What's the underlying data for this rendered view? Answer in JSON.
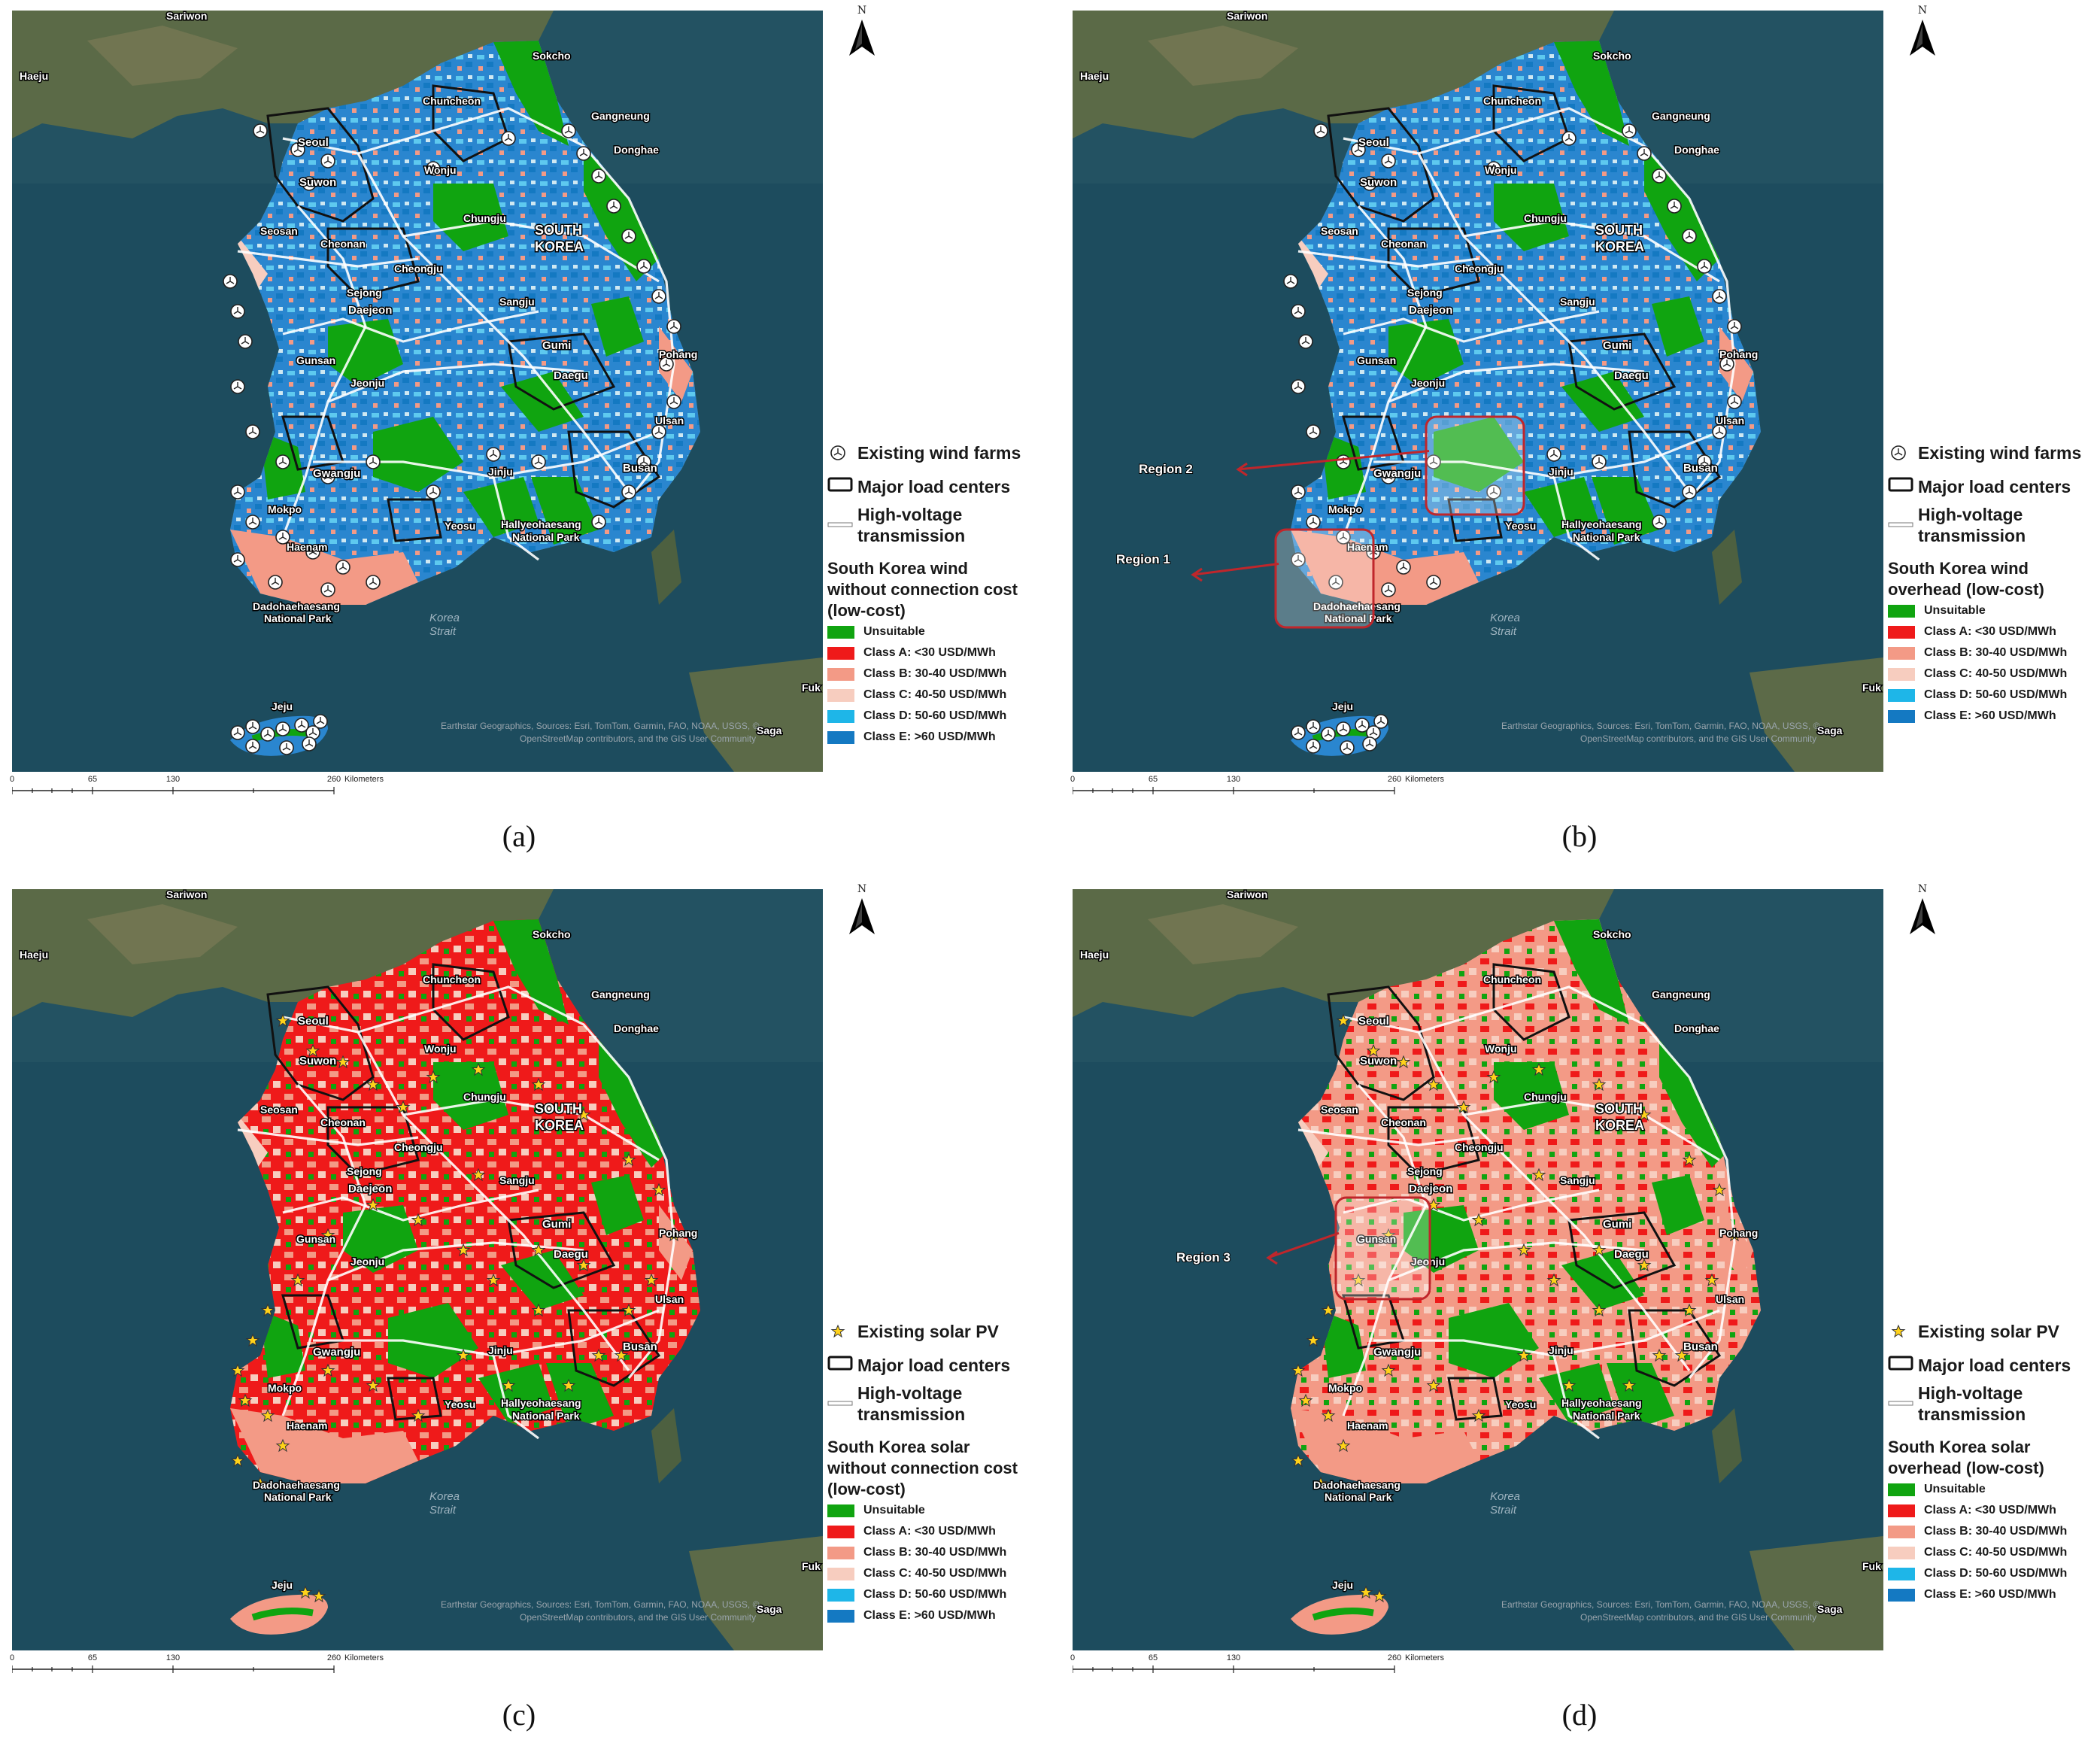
{
  "colors": {
    "unsuitable": "#10a410",
    "class_a": "#ef1a1a",
    "class_b": "#f39a86",
    "class_c": "#f7cdbf",
    "class_d": "#1eb6e8",
    "class_e": "#1479c2",
    "sea": "#1c4a5c",
    "land": "#566448"
  },
  "north_arrow": "N",
  "scale": {
    "ticks": [
      "0",
      "65",
      "130",
      "260"
    ],
    "unit": "Kilometers"
  },
  "legend_common": {
    "load_centers": "Major load centers",
    "transmission_line1": "High-voltage",
    "transmission_line2": "transmission",
    "classes": [
      "Unsuitable",
      "Class A: <30 USD/MWh",
      "Class B: 30-40 USD/MWh",
      "Class C: 40-50 USD/MWh",
      "Class D: 50-60 USD/MWh",
      "Class E: >60 USD/MWh"
    ]
  },
  "map_labels": {
    "sariwon": "Sariwon",
    "haeju": "Haeju",
    "sokcho": "Sokcho",
    "chuncheon": "Chuncheon",
    "gangneung": "Gangneung",
    "donghae": "Donghae",
    "seoul": "Seoul",
    "suwon": "Suwon",
    "wonju": "Wonju",
    "chungju": "Chungju",
    "seosan": "Seosan",
    "cheonan": "Cheonan",
    "cheongju": "Cheongju",
    "sejong": "Sejong",
    "daejeon": "Daejeon",
    "sangju": "Sangju",
    "gumi": "Gumi",
    "pohang": "Pohang",
    "daegu": "Daegu",
    "gunsan": "Gunsan",
    "jeonju": "Jeonju",
    "ulsan": "Ulsan",
    "gwangju": "Gwangju",
    "jinju": "Jinju",
    "busan": "Busan",
    "mokpo": "Mokpo",
    "yeosu": "Yeosu",
    "haenam": "Haenam",
    "hallyeo1": "Hallyeohaesang",
    "hallyeo2": "National Park",
    "dado1": "Dadohaehaesang",
    "dado2": "National Park",
    "korea_strait1": "Korea",
    "korea_strait2": "Strait",
    "jeju": "Jeju",
    "saga": "Saga",
    "fuk": "Fuk",
    "south": "SOUTH",
    "korea": "KOREA",
    "attribution1": "Earthstar Geographics, Sources: Esri, TomTom, Garmin, FAO, NOAA, USGS, ©",
    "attribution2": "OpenStreetMap contributors, and the GIS User Community"
  },
  "panels": [
    {
      "caption": "(a)",
      "type": "wind",
      "facility_label": "Existing wind farms",
      "title_lines": [
        "South Korea wind",
        "without connection cost",
        "(low-cost)"
      ],
      "region_markers": []
    },
    {
      "caption": "(b)",
      "type": "wind",
      "facility_label": "Existing wind farms",
      "title_lines": [
        "South Korea wind",
        "overhead (low-cost)"
      ],
      "region_markers": [
        {
          "label": "Region 1"
        },
        {
          "label": "Region 2"
        }
      ]
    },
    {
      "caption": "(c)",
      "type": "solar",
      "facility_label": "Existing solar PV",
      "title_lines": [
        "South Korea solar",
        "without connection cost",
        "(low-cost)"
      ],
      "region_markers": []
    },
    {
      "caption": "(d)",
      "type": "solar",
      "facility_label": "Existing solar PV",
      "title_lines": [
        "South Korea solar",
        "overhead (low-cost)"
      ],
      "region_markers": [
        {
          "label": "Region 3"
        }
      ]
    }
  ]
}
